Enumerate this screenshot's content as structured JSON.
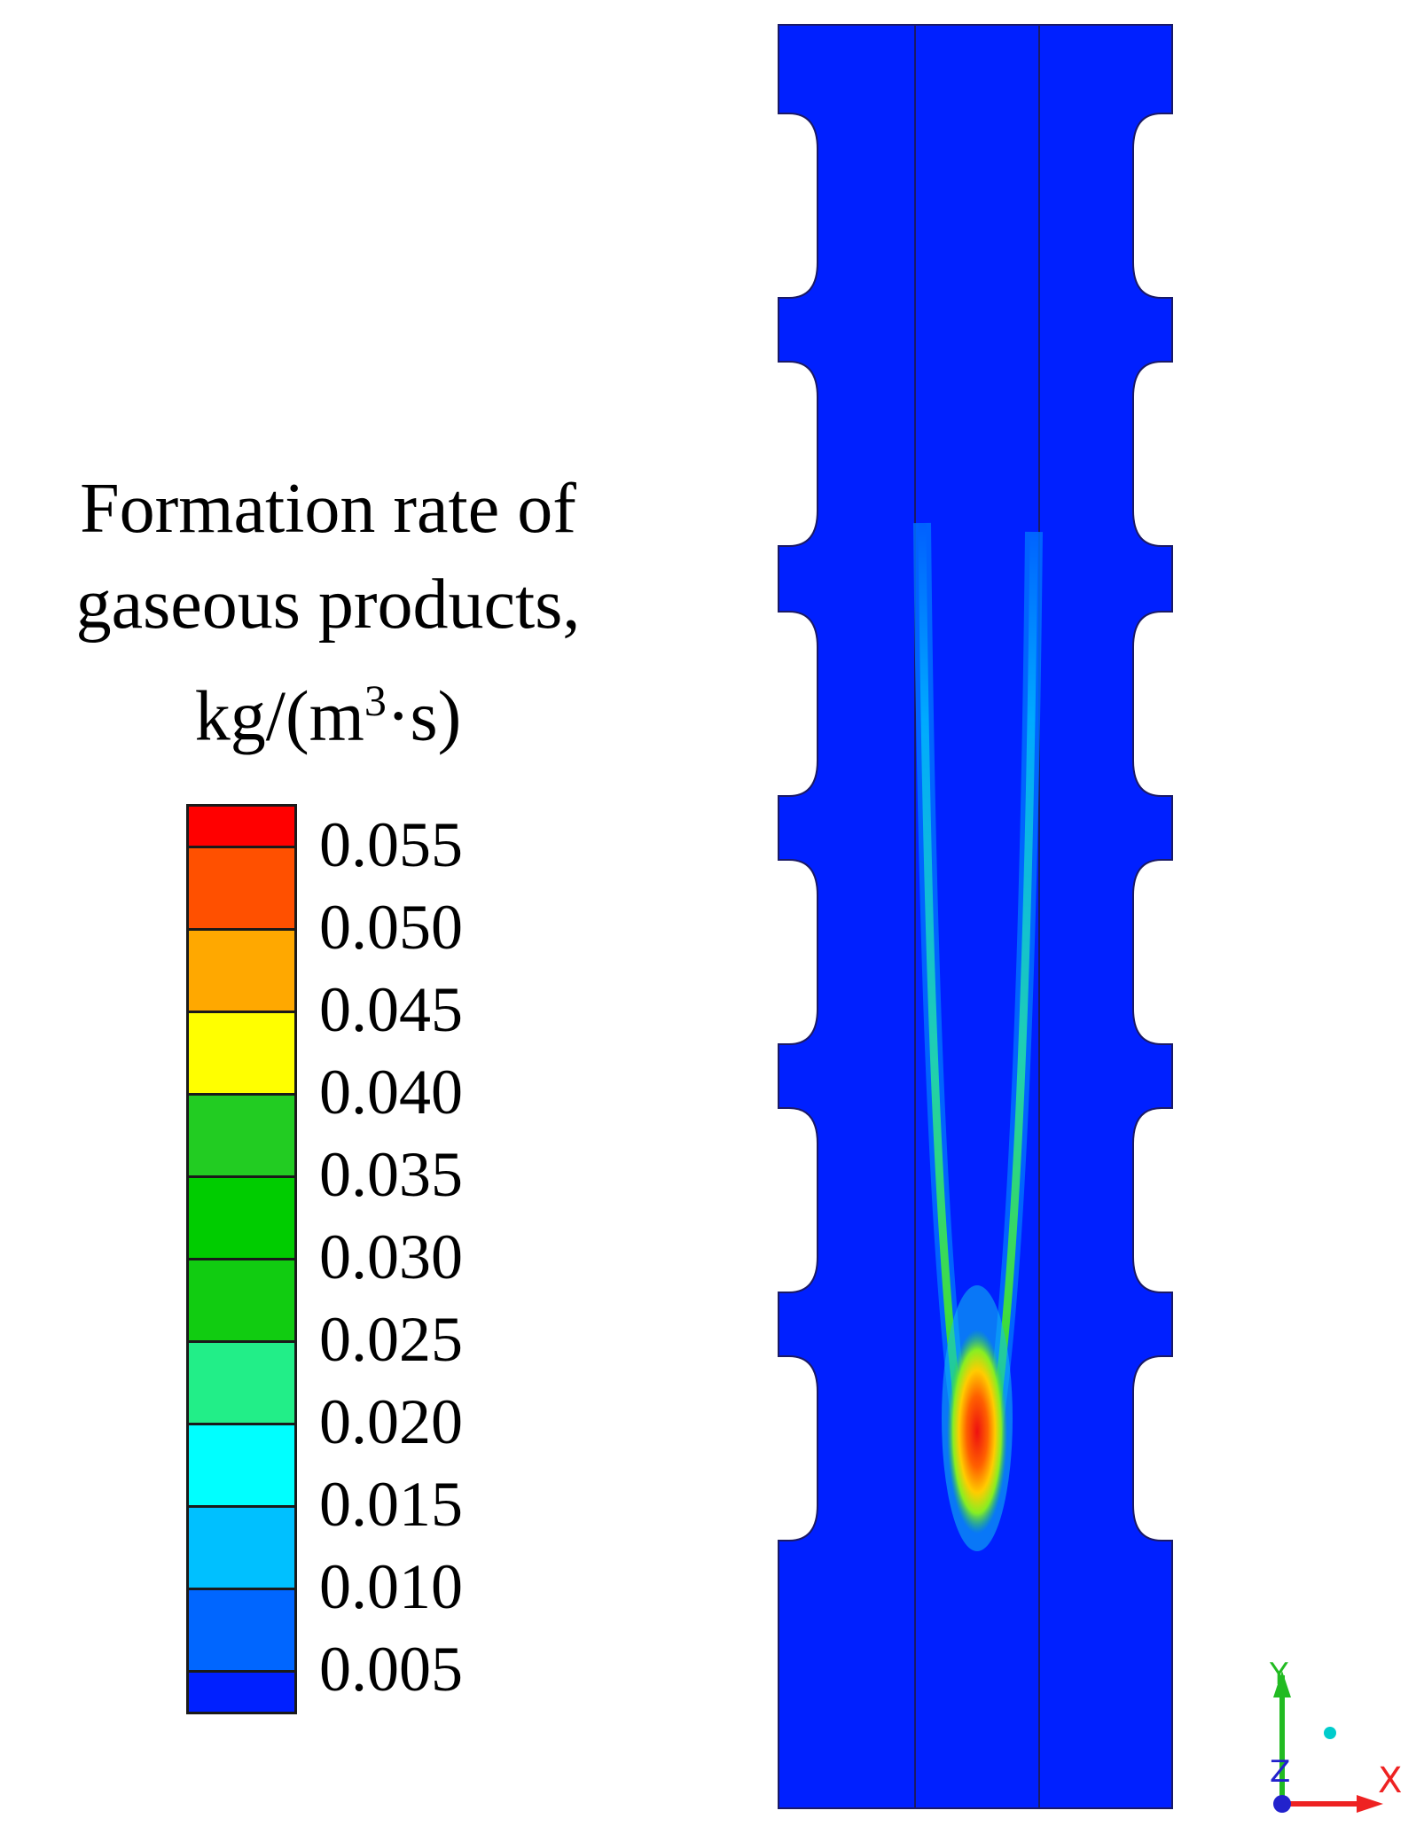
{
  "legend": {
    "title_lines": [
      "Formation rate of",
      "gaseous products,"
    ],
    "unit_prefix": "kg/(m",
    "unit_sup": "3",
    "unit_suffix": "·s)",
    "ticks": [
      "0.055",
      "0.050",
      "0.045",
      "0.040",
      "0.035",
      "0.030",
      "0.025",
      "0.020",
      "0.015",
      "0.010",
      "0.005"
    ],
    "colors": [
      "#ff0000",
      "#ff5000",
      "#ffa800",
      "#ffff00",
      "#22cc22",
      "#00cc00",
      "#11cc11",
      "#22ee88",
      "#00ffff",
      "#00c0ff",
      "#0066ff",
      "#0020ff"
    ]
  },
  "field": {
    "background_color": "#0020ff"
  },
  "axes": {
    "y_label": "Y",
    "z_label": "Z",
    "x_label": "X"
  }
}
